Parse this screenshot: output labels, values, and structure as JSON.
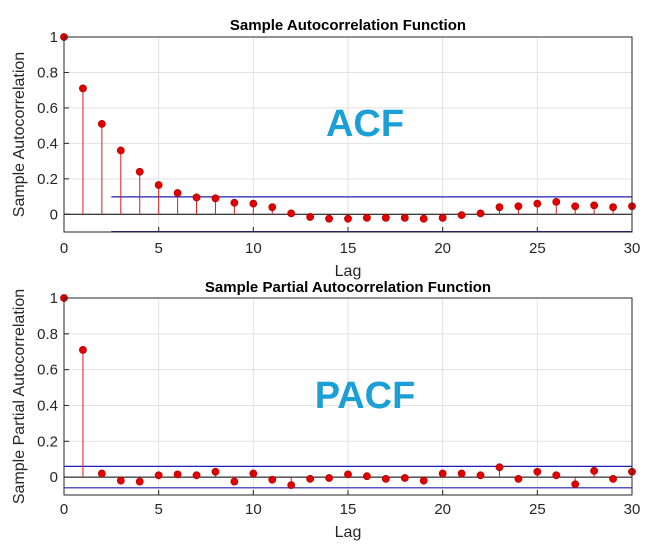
{
  "chart_data": [
    {
      "type": "stem",
      "title": "Sample Autocorrelation Function",
      "xlabel": "Lag",
      "ylabel": "Sample Autocorrelation",
      "annotation": "ACF",
      "xlim": [
        0,
        30
      ],
      "ylim": [
        -0.1,
        1
      ],
      "xticks": [
        "0",
        "5",
        "10",
        "15",
        "20",
        "25",
        "30"
      ],
      "yticks": [
        "0",
        "0.2",
        "0.4",
        "0.6",
        "0.8",
        "1"
      ],
      "grid": true,
      "bounds": [
        0.098,
        -0.098
      ],
      "x": [
        0,
        1,
        2,
        3,
        4,
        5,
        6,
        7,
        8,
        9,
        10,
        11,
        12,
        13,
        14,
        15,
        16,
        17,
        18,
        19,
        20,
        21,
        22,
        23,
        24,
        25,
        26,
        27,
        28,
        29,
        30
      ],
      "y": [
        1.0,
        0.71,
        0.51,
        0.36,
        0.24,
        0.165,
        0.12,
        0.095,
        0.09,
        0.065,
        0.06,
        0.04,
        0.005,
        -0.015,
        -0.025,
        -0.025,
        -0.02,
        -0.02,
        -0.02,
        -0.025,
        -0.02,
        -0.005,
        0.005,
        0.04,
        0.045,
        0.06,
        0.07,
        0.045,
        0.05,
        0.04,
        0.045
      ]
    },
    {
      "type": "stem",
      "title": "Sample Partial Autocorrelation Function",
      "xlabel": "Lag",
      "ylabel": "Sample Partial Autocorrelation",
      "annotation": "PACF",
      "xlim": [
        0,
        30
      ],
      "ylim": [
        -0.1,
        1
      ],
      "xticks": [
        "0",
        "5",
        "10",
        "15",
        "20",
        "25",
        "30"
      ],
      "yticks": [
        "0",
        "0.2",
        "0.4",
        "0.6",
        "0.8",
        "1"
      ],
      "grid": true,
      "bounds": [
        0.06,
        -0.06
      ],
      "x": [
        0,
        1,
        2,
        3,
        4,
        5,
        6,
        7,
        8,
        9,
        10,
        11,
        12,
        13,
        14,
        15,
        16,
        17,
        18,
        19,
        20,
        21,
        22,
        23,
        24,
        25,
        26,
        27,
        28,
        29,
        30
      ],
      "y": [
        1.0,
        0.71,
        0.02,
        -0.02,
        -0.025,
        0.01,
        0.015,
        0.01,
        0.03,
        -0.025,
        0.02,
        -0.015,
        -0.045,
        -0.01,
        -0.005,
        0.015,
        0.005,
        -0.01,
        -0.005,
        -0.02,
        0.02,
        0.02,
        0.01,
        0.055,
        -0.01,
        0.03,
        0.01,
        -0.04,
        0.035,
        -0.01,
        0.03
      ]
    }
  ],
  "colors": {
    "stem": "#e31a1c",
    "marker": "#e00000",
    "bound": "#1f1fb4",
    "annotation": "#1a9fd6",
    "grid": "#e2e2e2",
    "axis": "#262626"
  }
}
